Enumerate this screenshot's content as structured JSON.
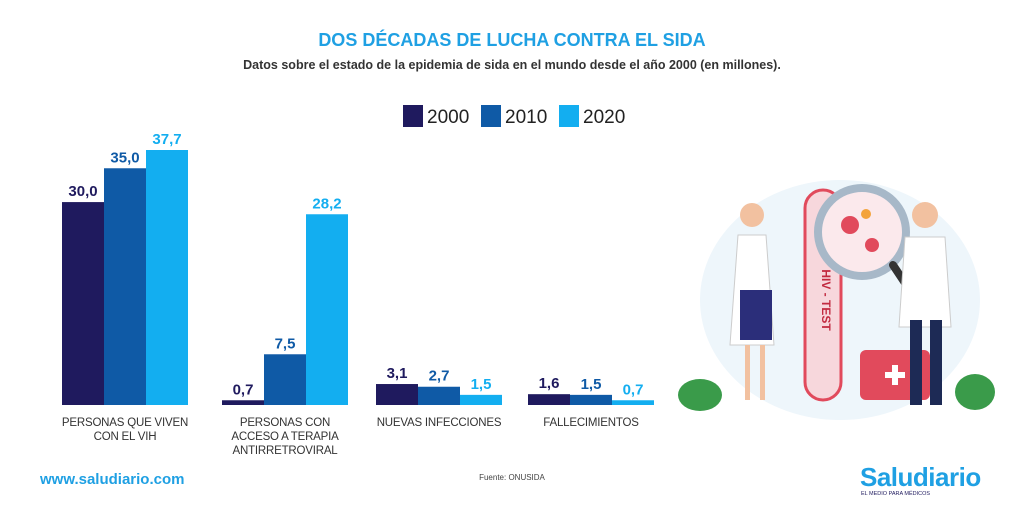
{
  "chart_data": {
    "type": "bar",
    "title": "DOS DÉCADAS DE LUCHA CONTRA EL SIDA",
    "subtitle": "Datos sobre el estado de la epidemia de sida en el mundo desde el año 2000 (en millones).",
    "categories": [
      "PERSONAS QUE VIVEN CON EL VIH",
      "PERSONAS CON ACCESO A TERAPIA ANTIRRETROVIRAL",
      "NUEVAS INFECCIONES",
      "FALLECIMIENTOS"
    ],
    "series": [
      {
        "name": "2000",
        "color": "#1f1a5e",
        "values": [
          30.0,
          0.7,
          3.1,
          1.6
        ],
        "value_labels": [
          "30,0",
          "0,7",
          "3,1",
          "1,6"
        ]
      },
      {
        "name": "2010",
        "color": "#0f5aa6",
        "values": [
          35.0,
          7.5,
          2.7,
          1.5
        ],
        "value_labels": [
          "35,0",
          "7,5",
          "2,7",
          "1,5"
        ]
      },
      {
        "name": "2020",
        "color": "#13aef0",
        "values": [
          37.7,
          28.2,
          1.5,
          0.7
        ],
        "value_labels": [
          "37,7",
          "28,2",
          "1,5",
          "0,7"
        ]
      }
    ]
  },
  "footer": {
    "website": "www.saludiario.com",
    "source": "Fuente: ONUSIDA",
    "brand": "Saludiario",
    "tagline": "EL MEDIO PARA MÉDICOS"
  },
  "illustration": {
    "label": "HIV - TEST"
  }
}
